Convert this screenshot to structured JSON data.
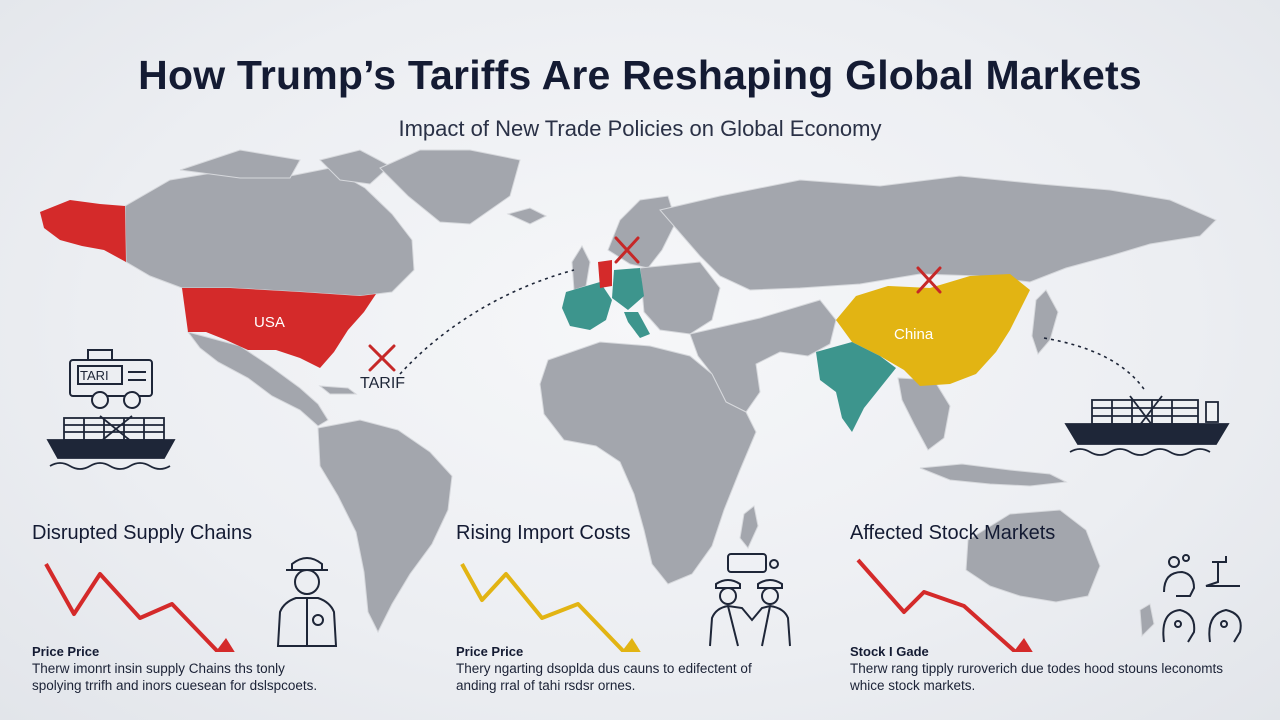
{
  "header": {
    "title": "How Trump’s Tariffs Are Reshaping Global Markets",
    "subtitle": "Impact of New Trade Policies on Global Economy"
  },
  "map": {
    "labels": {
      "usa": "USA",
      "china": "China",
      "tariff_marker": "TARIF"
    },
    "truck_sign": "TARI",
    "colors": {
      "land": "#a3a6ad",
      "usa": "#d42a2a",
      "china": "#e2b413",
      "teal": "#3d958d",
      "marker_x": "#c62828"
    }
  },
  "panels": [
    {
      "title": "Disrupted Supply Chains",
      "subheading": "Price Price",
      "desc_line1": "Therw imonrt insin supply Chains ths tonly",
      "desc_line2": "spolying trrifh and inors cuesean for dslspcoets.",
      "arrow_color": "#d42a2a",
      "icon": "worker-icon"
    },
    {
      "title": "Rising Import Costs",
      "subheading": "Price Price",
      "desc_line1": "Thery ngarting dsoplda dus cauns to edifectent of",
      "desc_line2": "anding rral of tahi rsdsr ornes.",
      "arrow_color": "#e2b413",
      "icon": "workers-icon"
    },
    {
      "title": "Affected Stock Markets",
      "subheading": "Stock I Gade",
      "desc_line1": "Therw rang tipply ruroverich due todes hood stouns leconomts",
      "desc_line2": "whice stock markets.",
      "arrow_color": "#d42a2a",
      "icon": "people-icon"
    }
  ]
}
